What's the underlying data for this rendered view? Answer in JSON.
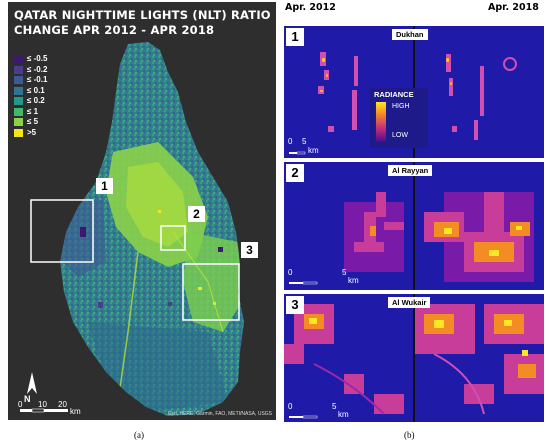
{
  "left_map": {
    "title_line1": "QATAR NIGHTTIME LIGHTS (NLT) RATIO",
    "title_line2": "CHANGE APR 2012 - APR 2018",
    "legend": [
      {
        "label": "≤ -0.5",
        "color": "#3b1a6e"
      },
      {
        "label": "≤ -0.2",
        "color": "#4a3d8c"
      },
      {
        "label": "≤ -0.1",
        "color": "#3e5a94"
      },
      {
        "label": "≤ 0.1",
        "color": "#2f7490"
      },
      {
        "label": "≤ 0.2",
        "color": "#22998a"
      },
      {
        "label": "≤ 1",
        "color": "#42b86a"
      },
      {
        "label": "≤ 5",
        "color": "#8bd24a"
      },
      {
        "label": ">5",
        "color": "#f4e61e"
      }
    ],
    "areas": [
      {
        "number": "1"
      },
      {
        "number": "2"
      },
      {
        "number": "3"
      }
    ],
    "north_label": "N",
    "scale": {
      "t0": "0",
      "t1": "10",
      "t2": "20",
      "unit": "km"
    },
    "attribution": "Esri, HERE, Garmin, FAO, METI/NASA, USGS"
  },
  "caption_left": "(a)",
  "caption_right": "(b)",
  "right": {
    "header_left": "Apr. 2012",
    "header_right": "Apr. 2018",
    "panels": [
      {
        "number": "1",
        "name": "Dukhan",
        "scale": {
          "t0": "0",
          "t1": "5",
          "unit": "km"
        }
      },
      {
        "number": "2",
        "name": "Al Rayyan",
        "scale": {
          "t0": "0",
          "t1": "5",
          "unit": "km"
        }
      },
      {
        "number": "3",
        "name": "Al Wukair",
        "scale": {
          "t0": "0",
          "t1": "5",
          "unit": "km"
        }
      }
    ],
    "radiance": {
      "title": "RADIANCE",
      "high": "HIGH",
      "low": "LOW"
    }
  }
}
